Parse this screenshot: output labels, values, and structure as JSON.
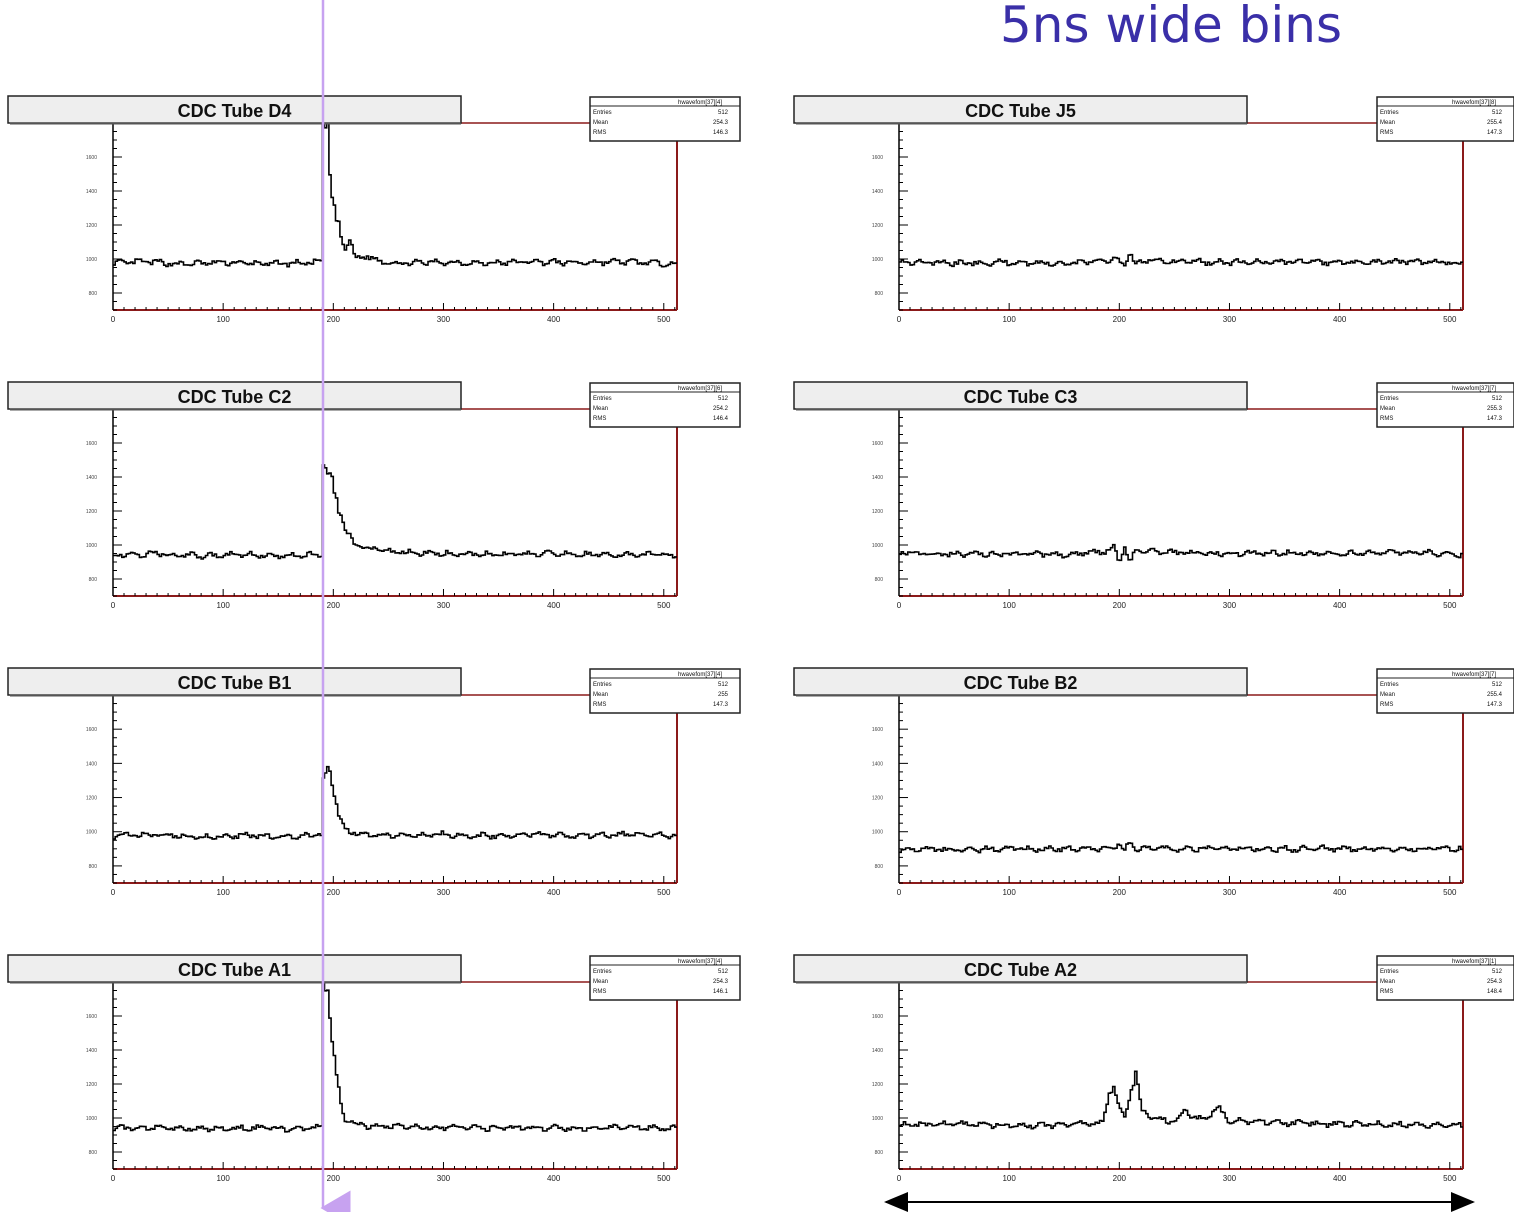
{
  "annotation": {
    "bins_label": "5ns wide bins",
    "marker_color": "#c7a2f0",
    "arrow_color": "#000000"
  },
  "colors": {
    "frame": "#8b1a1a",
    "title_box_fill": "#eeeeee",
    "trace": "#000000"
  },
  "chart_data": [
    {
      "type": "line",
      "title": "CDC Tube D4",
      "x_ticks": [
        "0",
        "100",
        "200",
        "300",
        "400",
        "500"
      ],
      "xlim": [
        0,
        512
      ],
      "y_ticks": [
        "800",
        "1000",
        "1200",
        "1400",
        "1600"
      ],
      "ylim": [
        700,
        1800
      ],
      "stats": {
        "header": "hwavefom[37][4]",
        "rows": [
          [
            "Entries",
            "512"
          ],
          [
            "Mean",
            "254.3"
          ],
          [
            "RMS",
            "146.3"
          ]
        ]
      },
      "series": [
        {
          "values": [
            [
              0,
              975
            ],
            [
              30,
              985
            ],
            [
              60,
              970
            ],
            [
              100,
              980
            ],
            [
              140,
              972
            ],
            [
              180,
              978
            ],
            [
              190,
              985
            ],
            [
              191,
              1800
            ],
            [
              195,
              1780
            ],
            [
              197,
              1500
            ],
            [
              200,
              1300
            ],
            [
              205,
              1200
            ],
            [
              210,
              1050
            ],
            [
              215,
              1120
            ],
            [
              220,
              1000
            ],
            [
              230,
              1020
            ],
            [
              240,
              990
            ],
            [
              260,
              975
            ],
            [
              300,
              982
            ],
            [
              340,
              975
            ],
            [
              380,
              985
            ],
            [
              420,
              978
            ],
            [
              460,
              985
            ],
            [
              500,
              975
            ],
            [
              512,
              972
            ]
          ]
        }
      ]
    },
    {
      "type": "line",
      "title": "CDC Tube J5",
      "x_ticks": [
        "0",
        "100",
        "200",
        "300",
        "400",
        "500"
      ],
      "xlim": [
        0,
        512
      ],
      "y_ticks": [
        "800",
        "1000",
        "1200",
        "1400",
        "1600"
      ],
      "ylim": [
        700,
        1800
      ],
      "stats": {
        "header": "hwavefom[37][8]",
        "rows": [
          [
            "Entries",
            "512"
          ],
          [
            "Mean",
            "255.4"
          ],
          [
            "RMS",
            "147.3"
          ]
        ]
      },
      "series": [
        {
          "values": [
            [
              0,
              985
            ],
            [
              50,
              975
            ],
            [
              100,
              980
            ],
            [
              150,
              975
            ],
            [
              185,
              985
            ],
            [
              195,
              1010
            ],
            [
              205,
              960
            ],
            [
              210,
              1040
            ],
            [
              215,
              965
            ],
            [
              225,
              995
            ],
            [
              250,
              985
            ],
            [
              300,
              980
            ],
            [
              350,
              985
            ],
            [
              400,
              978
            ],
            [
              450,
              985
            ],
            [
              500,
              980
            ],
            [
              512,
              975
            ]
          ]
        }
      ]
    },
    {
      "type": "line",
      "title": "CDC Tube C2",
      "x_ticks": [
        "0",
        "100",
        "200",
        "300",
        "400",
        "500"
      ],
      "xlim": [
        0,
        512
      ],
      "y_ticks": [
        "800",
        "1000",
        "1200",
        "1400",
        "1600"
      ],
      "ylim": [
        700,
        1800
      ],
      "stats": {
        "header": "hwavefom[37][6]",
        "rows": [
          [
            "Entries",
            "512"
          ],
          [
            "Mean",
            "254.2"
          ],
          [
            "RMS",
            "146.4"
          ]
        ]
      },
      "series": [
        {
          "values": [
            [
              0,
              940
            ],
            [
              40,
              950
            ],
            [
              80,
              935
            ],
            [
              120,
              945
            ],
            [
              160,
              935
            ],
            [
              190,
              945
            ],
            [
              191,
              1500
            ],
            [
              195,
              1430
            ],
            [
              200,
              1350
            ],
            [
              205,
              1200
            ],
            [
              210,
              1100
            ],
            [
              215,
              1050
            ],
            [
              220,
              1000
            ],
            [
              230,
              985
            ],
            [
              250,
              960
            ],
            [
              300,
              950
            ],
            [
              350,
              945
            ],
            [
              400,
              948
            ],
            [
              450,
              942
            ],
            [
              500,
              945
            ],
            [
              512,
              940
            ]
          ]
        }
      ]
    },
    {
      "type": "line",
      "title": "CDC Tube C3",
      "x_ticks": [
        "0",
        "100",
        "200",
        "300",
        "400",
        "500"
      ],
      "xlim": [
        0,
        512
      ],
      "y_ticks": [
        "800",
        "1000",
        "1200",
        "1400",
        "1600"
      ],
      "ylim": [
        700,
        1800
      ],
      "stats": {
        "header": "hwavefom[37][7]",
        "rows": [
          [
            "Entries",
            "512"
          ],
          [
            "Mean",
            "255.3"
          ],
          [
            "RMS",
            "147.3"
          ]
        ]
      },
      "series": [
        {
          "values": [
            [
              0,
              955
            ],
            [
              50,
              945
            ],
            [
              100,
              950
            ],
            [
              150,
              945
            ],
            [
              185,
              960
            ],
            [
              195,
              985
            ],
            [
              200,
              900
            ],
            [
              205,
              1000
            ],
            [
              210,
              880
            ],
            [
              215,
              975
            ],
            [
              225,
              960
            ],
            [
              250,
              955
            ],
            [
              300,
              950
            ],
            [
              350,
              955
            ],
            [
              400,
              948
            ],
            [
              450,
              955
            ],
            [
              500,
              950
            ],
            [
              512,
              945
            ]
          ]
        }
      ]
    },
    {
      "type": "line",
      "title": "CDC Tube B1",
      "x_ticks": [
        "0",
        "100",
        "200",
        "300",
        "400",
        "500"
      ],
      "xlim": [
        0,
        512
      ],
      "y_ticks": [
        "800",
        "1000",
        "1200",
        "1400",
        "1600"
      ],
      "ylim": [
        700,
        1800
      ],
      "stats": {
        "header": "hwavefom[37][4]",
        "rows": [
          [
            "Entries",
            "512"
          ],
          [
            "Mean",
            "255"
          ],
          [
            "RMS",
            "147.3"
          ]
        ]
      },
      "series": [
        {
          "values": [
            [
              0,
              975
            ],
            [
              40,
              985
            ],
            [
              80,
              970
            ],
            [
              120,
              980
            ],
            [
              160,
              972
            ],
            [
              190,
              982
            ],
            [
              191,
              1320
            ],
            [
              195,
              1380
            ],
            [
              200,
              1250
            ],
            [
              205,
              1100
            ],
            [
              210,
              1020
            ],
            [
              215,
              1000
            ],
            [
              220,
              995
            ],
            [
              230,
              985
            ],
            [
              260,
              980
            ],
            [
              300,
              985
            ],
            [
              340,
              975
            ],
            [
              380,
              985
            ],
            [
              420,
              978
            ],
            [
              460,
              985
            ],
            [
              500,
              980
            ],
            [
              512,
              975
            ]
          ]
        }
      ]
    },
    {
      "type": "line",
      "title": "CDC Tube B2",
      "x_ticks": [
        "0",
        "100",
        "200",
        "300",
        "400",
        "500"
      ],
      "xlim": [
        0,
        512
      ],
      "y_ticks": [
        "800",
        "1000",
        "1200",
        "1400",
        "1600"
      ],
      "ylim": [
        700,
        1800
      ],
      "stats": {
        "header": "hwavefom[37][7]",
        "rows": [
          [
            "Entries",
            "512"
          ],
          [
            "Mean",
            "255.4"
          ],
          [
            "RMS",
            "147.3"
          ]
        ]
      },
      "series": [
        {
          "values": [
            [
              0,
              900
            ],
            [
              50,
              895
            ],
            [
              100,
              900
            ],
            [
              150,
              898
            ],
            [
              190,
              902
            ],
            [
              200,
              930
            ],
            [
              205,
              895
            ],
            [
              210,
              935
            ],
            [
              215,
              900
            ],
            [
              225,
              905
            ],
            [
              250,
              900
            ],
            [
              300,
              902
            ],
            [
              350,
              898
            ],
            [
              400,
              902
            ],
            [
              450,
              898
            ],
            [
              500,
              900
            ],
            [
              512,
              898
            ]
          ]
        }
      ]
    },
    {
      "type": "line",
      "title": "CDC Tube A1",
      "x_ticks": [
        "0",
        "100",
        "200",
        "300",
        "400",
        "500"
      ],
      "xlim": [
        0,
        512
      ],
      "y_ticks": [
        "800",
        "1000",
        "1200",
        "1400",
        "1600"
      ],
      "ylim": [
        700,
        1800
      ],
      "stats": {
        "header": "hwavefom[37][4]",
        "rows": [
          [
            "Entries",
            "512"
          ],
          [
            "Mean",
            "254.3"
          ],
          [
            "RMS",
            "146.1"
          ]
        ]
      },
      "series": [
        {
          "values": [
            [
              0,
              940
            ],
            [
              40,
              945
            ],
            [
              80,
              935
            ],
            [
              120,
              942
            ],
            [
              160,
              935
            ],
            [
              190,
              945
            ],
            [
              191,
              1800
            ],
            [
              195,
              1750
            ],
            [
              200,
              1400
            ],
            [
              205,
              1150
            ],
            [
              210,
              1000
            ],
            [
              215,
              980
            ],
            [
              220,
              960
            ],
            [
              230,
              955
            ],
            [
              260,
              948
            ],
            [
              300,
              945
            ],
            [
              340,
              940
            ],
            [
              380,
              945
            ],
            [
              420,
              938
            ],
            [
              460,
              945
            ],
            [
              500,
              940
            ],
            [
              512,
              938
            ]
          ]
        }
      ]
    },
    {
      "type": "line",
      "title": "CDC Tube A2",
      "x_ticks": [
        "0",
        "100",
        "200",
        "300",
        "400",
        "500"
      ],
      "xlim": [
        0,
        512
      ],
      "y_ticks": [
        "800",
        "1000",
        "1200",
        "1400",
        "1600"
      ],
      "ylim": [
        700,
        1800
      ],
      "stats": {
        "header": "hwavefom[37][1]",
        "rows": [
          [
            "Entries",
            "512"
          ],
          [
            "Mean",
            "254.3"
          ],
          [
            "RMS",
            "148.4"
          ]
        ]
      },
      "series": [
        {
          "values": [
            [
              0,
              960
            ],
            [
              50,
              965
            ],
            [
              100,
              955
            ],
            [
              150,
              960
            ],
            [
              185,
              965
            ],
            [
              190,
              1150
            ],
            [
              195,
              1200
            ],
            [
              200,
              1050
            ],
            [
              205,
              1000
            ],
            [
              210,
              1150
            ],
            [
              215,
              1250
            ],
            [
              220,
              1050
            ],
            [
              230,
              1000
            ],
            [
              240,
              990
            ],
            [
              250,
              980
            ],
            [
              260,
              1050
            ],
            [
              270,
              990
            ],
            [
              280,
              1010
            ],
            [
              290,
              1060
            ],
            [
              300,
              985
            ],
            [
              350,
              970
            ],
            [
              400,
              965
            ],
            [
              450,
              962
            ],
            [
              500,
              960
            ],
            [
              512,
              958
            ]
          ]
        }
      ]
    }
  ]
}
